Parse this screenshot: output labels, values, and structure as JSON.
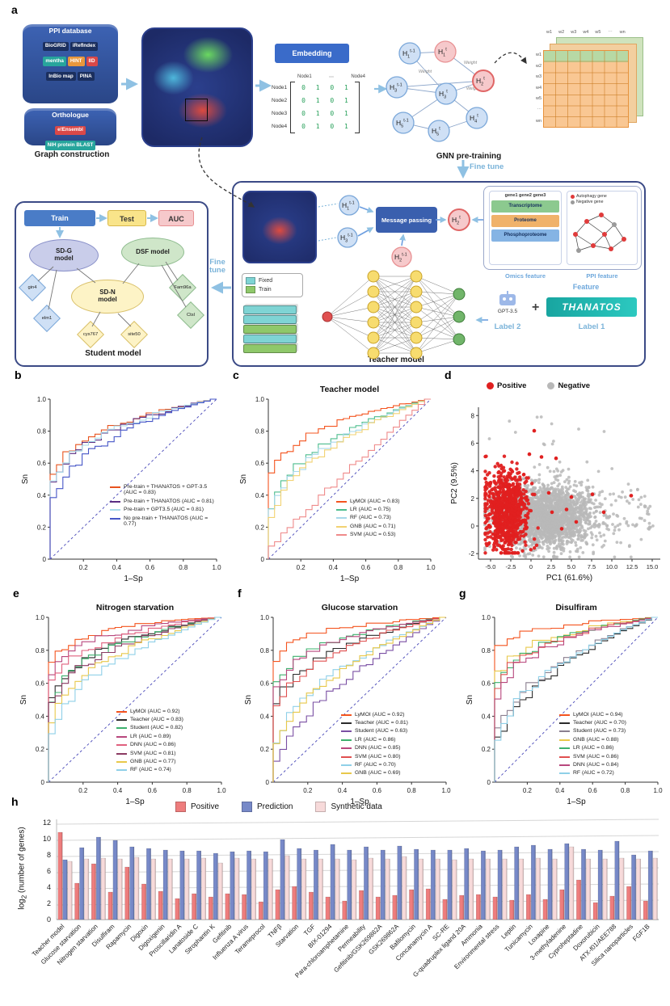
{
  "panel_labels": {
    "a": "a",
    "b": "b",
    "c": "c",
    "d": "d",
    "e": "e",
    "f": "f",
    "g": "g",
    "h": "h"
  },
  "panel_a": {
    "ppi_db": {
      "title": "PPI database",
      "chips": [
        "BioGRID",
        "iRefIndex",
        "mentha",
        "HINT",
        "IID",
        "InBio map",
        "PINA"
      ]
    },
    "orthologue": {
      "title": "Orthologue",
      "chips": [
        "e!Ensembl",
        "NIH protein BLAST"
      ]
    },
    "captions": {
      "graph_construction": "Graph construction",
      "gnn_pretraining": "GNN pre-training",
      "teacher_model": "Teacher model",
      "student_model": "Student model",
      "feature": "Feature",
      "omics_feature": "Omics feature",
      "ppi_feature": "PPI feature",
      "fine_tune_right": "Fine tune",
      "fine_tune_left": "Fine tune"
    },
    "embedding_label": "Embedding",
    "adjacency": {
      "header": {
        "left": "Node1",
        "dots": "⋯",
        "right": "Node4"
      },
      "rows": [
        {
          "label": "Node1",
          "values": "0 1 0 1"
        },
        {
          "label": "Node2",
          "values": "0 1 0 1"
        },
        {
          "label": "Node3",
          "values": "0 1 0 1"
        },
        {
          "label": "Node4",
          "values": "0 1 0 1"
        }
      ]
    },
    "gnn_nodes": [
      {
        "base": "H",
        "sub": "1",
        "sup": "t-1",
        "tone": "blue"
      },
      {
        "base": "H",
        "sub": "3",
        "sup": "t-1",
        "tone": "blue"
      },
      {
        "base": "H",
        "sub": "5",
        "sup": "t-1",
        "tone": "blue"
      },
      {
        "base": "H",
        "sub": "1",
        "sup": "t",
        "tone": "pink"
      },
      {
        "base": "H",
        "sub": "3",
        "sup": "t",
        "tone": "blue"
      },
      {
        "base": "H",
        "sub": "5",
        "sup": "t",
        "tone": "blue"
      },
      {
        "base": "H",
        "sub": "2",
        "sup": "t",
        "tone": "pink"
      },
      {
        "base": "H",
        "sub": "4",
        "sup": "t",
        "tone": "blue"
      }
    ],
    "edge_weight_label": "Weight",
    "weight_matrix": {
      "col_headers": [
        "w1",
        "w2",
        "w3",
        "w4",
        "w5",
        "⋯",
        "wn"
      ],
      "row_headers": [
        "w1",
        "w2",
        "w3",
        "w4",
        "w5",
        "⋯",
        "wn"
      ]
    },
    "message_passing_label": "Message passing",
    "mp_nodes": [
      {
        "base": "H",
        "sub": "1",
        "sup": "t-1",
        "tone": "blue"
      },
      {
        "base": "H",
        "sub": "3",
        "sup": "t-1",
        "tone": "blue"
      },
      {
        "base": "H",
        "sub": "2",
        "sup": "t-1",
        "tone": "pink"
      },
      {
        "base": "H",
        "sub": "2",
        "sup": "t",
        "tone": "pink"
      }
    ],
    "feature_card": {
      "omics": {
        "genes_header": "gene1 gene2 gene3",
        "rows": [
          "Transcriptome",
          "Proteome",
          "Phosphoproteome"
        ]
      },
      "ppi": {
        "legend": [
          "Autophagy gene",
          "Negative gene"
        ]
      }
    },
    "fixed_train_legend": {
      "fixed": "Fixed",
      "train": "Train"
    },
    "gpt": {
      "name": "GPT-3.5",
      "label": "Label 2"
    },
    "plus_sign": "+",
    "thanatos": {
      "name": "THANATOS",
      "label": "Label 1"
    },
    "student": {
      "flow": [
        "Train",
        "Test",
        "AUC"
      ],
      "models": [
        "SD-G model",
        "DSF model",
        "SD-N model"
      ],
      "diamonds": [
        "gin4",
        "elm1",
        "cys767",
        "site50",
        "Fam96a",
        "Ctsl"
      ]
    }
  },
  "chart_data": [
    {
      "id": "b",
      "type": "line",
      "roc": true,
      "title": "",
      "xlabel": "1–Sp",
      "ylabel": "Sn",
      "xlim": [
        0,
        1
      ],
      "ylim": [
        0,
        1
      ],
      "xticks": [
        0.2,
        0.4,
        0.6,
        0.8,
        1.0
      ],
      "yticks": [
        0,
        0.2,
        0.4,
        0.6,
        0.8,
        1.0
      ],
      "legend_position": "lower right",
      "grid": false,
      "series": [
        {
          "name": "Pre-train + THANATOS + GPT-3.5 (AUC = 0.83)",
          "auc": 0.83,
          "color": "#e8541f"
        },
        {
          "name": "Pre-train + THANATOS (AUC = 0.81)",
          "auc": 0.81,
          "color": "#5a2d82"
        },
        {
          "name": "Pre-train + GPT3.5 (AUC = 0.81)",
          "auc": 0.81,
          "color": "#a7d9e8"
        },
        {
          "name": "No pre-train + THANATOS (AUC = 0.77)",
          "auc": 0.77,
          "color": "#4656c7"
        }
      ]
    },
    {
      "id": "c",
      "type": "line",
      "roc": true,
      "title": "Teacher model",
      "xlabel": "1–Sp",
      "ylabel": "Sn",
      "xlim": [
        0,
        1
      ],
      "ylim": [
        0,
        1
      ],
      "xticks": [
        0.2,
        0.4,
        0.6,
        0.8,
        1.0
      ],
      "yticks": [
        0,
        0.2,
        0.4,
        0.6,
        0.8,
        1.0
      ],
      "legend_position": "lower right",
      "grid": false,
      "series": [
        {
          "name": "LyMOI (AUC = 0.83)",
          "auc": 0.83,
          "color": "#f4541f"
        },
        {
          "name": "LR (AUC = 0.75)",
          "auc": 0.75,
          "color": "#4dbd8e"
        },
        {
          "name": "RF (AUC = 0.73)",
          "auc": 0.73,
          "color": "#a8d8ea"
        },
        {
          "name": "GNB (AUC = 0.71)",
          "auc": 0.71,
          "color": "#f2d272"
        },
        {
          "name": "SVM (AUC = 0.53)",
          "auc": 0.53,
          "color": "#ef8a8a"
        }
      ]
    },
    {
      "id": "d",
      "type": "scatter",
      "title": "",
      "xlabel": "PC1 (61.6%)",
      "ylabel": "PC2 (9.5%)",
      "xlim": [
        -6.5,
        16.0
      ],
      "ylim": [
        -2.4,
        8.6
      ],
      "xticks": [
        -5.0,
        -2.5,
        0,
        2.5,
        5.0,
        7.5,
        10.0,
        12.5,
        15.0
      ],
      "yticks": [
        -2,
        0,
        2,
        4,
        6,
        8
      ],
      "legend": [
        {
          "name": "Positive",
          "color": "#e02020"
        },
        {
          "name": "Negative",
          "color": "#b8b8b8"
        }
      ],
      "legend_position": "top",
      "grid": false,
      "clusters": [
        {
          "name": "Negative",
          "kind": "neg",
          "color": "#b8b8b8",
          "n": 2400,
          "cx": 1.7,
          "cy": 0.75,
          "sx": 2.9,
          "sy": 1.15,
          "seed": 7
        },
        {
          "name": "Positive",
          "kind": "pos",
          "color": "#e02020",
          "n": 780,
          "cx": -3.05,
          "cy": 1.05,
          "sx": 1.35,
          "sy": 1.5,
          "seed": 13
        }
      ],
      "extra_positive": [
        [
          2.6,
          1.0
        ],
        [
          3.1,
          4.9
        ],
        [
          1.3,
          5.0
        ],
        [
          0.4,
          6.9
        ],
        [
          -0.2,
          5.2
        ],
        [
          5.0,
          2.1
        ],
        [
          5.6,
          0.3
        ],
        [
          7.6,
          2.3
        ],
        [
          9.0,
          1.0
        ],
        [
          12.4,
          2.2
        ],
        [
          3.8,
          -0.2
        ],
        [
          2.2,
          2.4
        ],
        [
          4.4,
          1.2
        ]
      ]
    },
    {
      "id": "e",
      "type": "line",
      "roc": true,
      "title": "Nitrogen starvation",
      "xlabel": "1–Sp",
      "ylabel": "Sn",
      "xlim": [
        0,
        1
      ],
      "ylim": [
        0,
        1
      ],
      "xticks": [
        0.2,
        0.4,
        0.6,
        0.8,
        1.0
      ],
      "yticks": [
        0,
        0.2,
        0.4,
        0.6,
        0.8,
        1.0
      ],
      "legend_position": "lower right",
      "grid": false,
      "series": [
        {
          "name": "LyMOI (AUC = 0.92)",
          "auc": 0.92,
          "color": "#f4541f"
        },
        {
          "name": "Teacher (AUC = 0.83)",
          "auc": 0.83,
          "color": "#2b2b2b"
        },
        {
          "name": "Student (AUC = 0.82)",
          "auc": 0.82,
          "color": "#3cb06d"
        },
        {
          "name": "LR (AUC = 0.89)",
          "auc": 0.89,
          "color": "#b8477d"
        },
        {
          "name": "DNN (AUC = 0.86)",
          "auc": 0.86,
          "color": "#e0607e"
        },
        {
          "name": "SVM (AUC = 0.81)",
          "auc": 0.81,
          "color": "#8b3a62"
        },
        {
          "name": "GNB (AUC = 0.77)",
          "auc": 0.77,
          "color": "#e8c84a"
        },
        {
          "name": "RF (AUC = 0.74)",
          "auc": 0.74,
          "color": "#8fd0e8"
        }
      ]
    },
    {
      "id": "f",
      "type": "line",
      "roc": true,
      "title": "Glucose starvation",
      "xlabel": "1–Sp",
      "ylabel": "Sn",
      "xlim": [
        0,
        1
      ],
      "ylim": [
        0,
        1
      ],
      "xticks": [
        0.2,
        0.4,
        0.6,
        0.8,
        1.0
      ],
      "yticks": [
        0,
        0.2,
        0.4,
        0.6,
        0.8,
        1.0
      ],
      "legend_position": "lower right",
      "grid": false,
      "series": [
        {
          "name": "LyMOI (AUC = 0.92)",
          "auc": 0.92,
          "color": "#f4541f"
        },
        {
          "name": "Teacher (AUC = 0.81)",
          "auc": 0.81,
          "color": "#2b2b2b"
        },
        {
          "name": "Student (AUC = 0.63)",
          "auc": 0.63,
          "color": "#7a4fa3"
        },
        {
          "name": "LR (AUC = 0.86)",
          "auc": 0.86,
          "color": "#3cb06d"
        },
        {
          "name": "DNN (AUC = 0.85)",
          "auc": 0.85,
          "color": "#b8477d"
        },
        {
          "name": "SVM (AUC = 0.80)",
          "auc": 0.8,
          "color": "#e05050"
        },
        {
          "name": "RF (AUC = 0.70)",
          "auc": 0.7,
          "color": "#8fd0e8"
        },
        {
          "name": "GNB (AUC = 0.69)",
          "auc": 0.69,
          "color": "#e8c84a"
        }
      ]
    },
    {
      "id": "g",
      "type": "line",
      "roc": true,
      "title": "Disulfiram",
      "xlabel": "1–Sp",
      "ylabel": "Sn",
      "xlim": [
        0,
        1
      ],
      "ylim": [
        0,
        1
      ],
      "xticks": [
        0.2,
        0.4,
        0.6,
        0.8,
        1.0
      ],
      "yticks": [
        0,
        0.2,
        0.4,
        0.6,
        0.8,
        1.0
      ],
      "legend_position": "lower right",
      "grid": false,
      "series": [
        {
          "name": "LyMOI (AUC = 0.94)",
          "auc": 0.94,
          "color": "#f4541f"
        },
        {
          "name": "Teacher (AUC = 0.70)",
          "auc": 0.7,
          "color": "#2b2b2b"
        },
        {
          "name": "Student (AUC = 0.73)",
          "auc": 0.73,
          "color": "#8a7f8f"
        },
        {
          "name": "GNB (AUC = 0.88)",
          "auc": 0.88,
          "color": "#e8c84a"
        },
        {
          "name": "LR (AUC = 0.86)",
          "auc": 0.86,
          "color": "#3cb06d"
        },
        {
          "name": "SVM (AUC = 0.86)",
          "auc": 0.86,
          "color": "#e05050"
        },
        {
          "name": "DNN (AUC = 0.84)",
          "auc": 0.84,
          "color": "#b8477d"
        },
        {
          "name": "RF (AUC = 0.72)",
          "auc": 0.72,
          "color": "#8fd0e8"
        }
      ]
    },
    {
      "id": "h",
      "type": "bar",
      "title": "",
      "ylabel": "log2 (number of genes)",
      "ylabel_parts": {
        "pre": "log",
        "sub": "2",
        "post": " (number of genes)"
      },
      "ylim": [
        0,
        12
      ],
      "yticks": [
        0,
        2,
        4,
        6,
        8,
        10,
        12
      ],
      "legend_position": "top",
      "grid": true,
      "categories": [
        "Teacher model",
        "Glucose starvation",
        "Nitrogen starvation",
        "Disulfiram",
        "Rapamycin",
        "Digoxin",
        "Digoxigenin",
        "Proscillaridin A",
        "Lanatoside C",
        "Strophantin K",
        "Gefitinib",
        "Influenza A virus",
        "Terameprocol",
        "TNFβ",
        "Starvation",
        "TGF",
        "BIX-01294",
        "Para-chloroamphetamine",
        "Permeability",
        "Gefitinib/GSK269862A",
        "GSK269862A",
        "Bafilomycin",
        "Concanamycin A",
        "SC-RE",
        "G-quadruplex ligand 20A",
        "Ammonia",
        "Environmental stress",
        "Leptin",
        "Tunicamycin",
        "Loxapine",
        "3-methyladenine",
        "Cyproheptadine",
        "Doxorubicin",
        "ATX-f01/AEE788",
        "Silica nanoparticles",
        "FGF1B"
      ],
      "series": [
        {
          "name": "Positive",
          "color": "#ee7d7d",
          "values": [
            10.8,
            4.5,
            6.9,
            3.4,
            6.5,
            4.4,
            3.5,
            2.6,
            3.2,
            2.8,
            3.2,
            3.1,
            2.2,
            3.7,
            4.1,
            3.4,
            2.8,
            2.3,
            3.6,
            2.8,
            3.0,
            3.7,
            3.8,
            2.5,
            3.0,
            3.1,
            2.8,
            2.4,
            3.1,
            2.5,
            3.7,
            4.9,
            2.1,
            2.9,
            4.1,
            2.3
          ]
        },
        {
          "name": "Prediction",
          "color": "#7789c8",
          "values": [
            7.4,
            8.9,
            10.2,
            9.8,
            9.0,
            8.8,
            8.6,
            8.5,
            8.5,
            8.2,
            8.4,
            8.5,
            8.4,
            9.9,
            8.8,
            8.6,
            9.3,
            8.6,
            9.0,
            8.6,
            9.1,
            8.7,
            8.6,
            8.6,
            8.8,
            8.5,
            8.6,
            9.0,
            9.2,
            8.7,
            9.4,
            8.7,
            8.6,
            9.7,
            8.0,
            8.5
          ]
        },
        {
          "name": "Synthetic data",
          "color": "#f7dada",
          "values": [
            7.2,
            7.5,
            7.6,
            7.5,
            7.7,
            7.5,
            7.5,
            7.5,
            7.6,
            7.0,
            7.6,
            7.5,
            7.5,
            7.9,
            7.5,
            7.5,
            7.5,
            7.4,
            7.6,
            7.5,
            7.8,
            7.5,
            7.5,
            7.4,
            7.5,
            7.5,
            7.5,
            7.5,
            7.6,
            7.5,
            9.0,
            7.5,
            7.5,
            7.6,
            7.5,
            7.6
          ]
        }
      ]
    }
  ]
}
